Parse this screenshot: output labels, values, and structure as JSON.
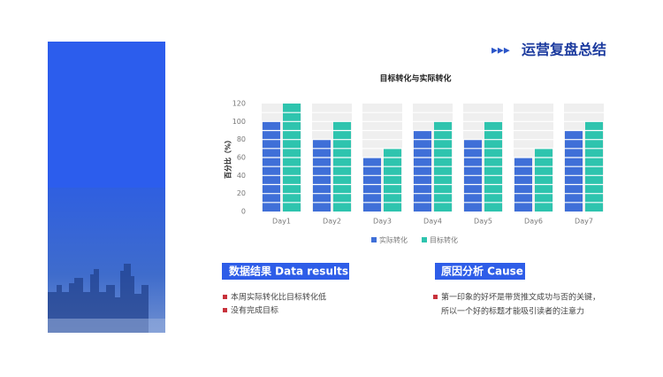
{
  "header": {
    "title": "运营复盘总结"
  },
  "chart_data": {
    "type": "bar",
    "title": "目标转化与实际转化",
    "y_label": "百分比（%）",
    "categories": [
      "Day1",
      "Day2",
      "Day3",
      "Day4",
      "Day5",
      "Day6",
      "Day7"
    ],
    "series": [
      {
        "name": "实际转化",
        "color": "#3f6fd8",
        "values": [
          100,
          80,
          60,
          90,
          80,
          60,
          90
        ]
      },
      {
        "name": "目标转化",
        "color": "#2ec4ae",
        "values": [
          120,
          100,
          70,
          100,
          100,
          70,
          100
        ]
      }
    ],
    "ylim": [
      0,
      120
    ],
    "yticks": [
      0,
      20,
      40,
      60,
      80,
      100,
      120
    ],
    "legend": "bottom"
  },
  "results": {
    "title": "数据结果  Data results",
    "bullets": [
      "本周实际转化比目标转化低",
      "没有完成目标"
    ]
  },
  "cause": {
    "title": "原因分析  Cause",
    "bullets": [
      "第一印象的好坏是带货推文成功与否的关键，",
      "所以一个好的标题才能吸引读者的注意力"
    ]
  }
}
